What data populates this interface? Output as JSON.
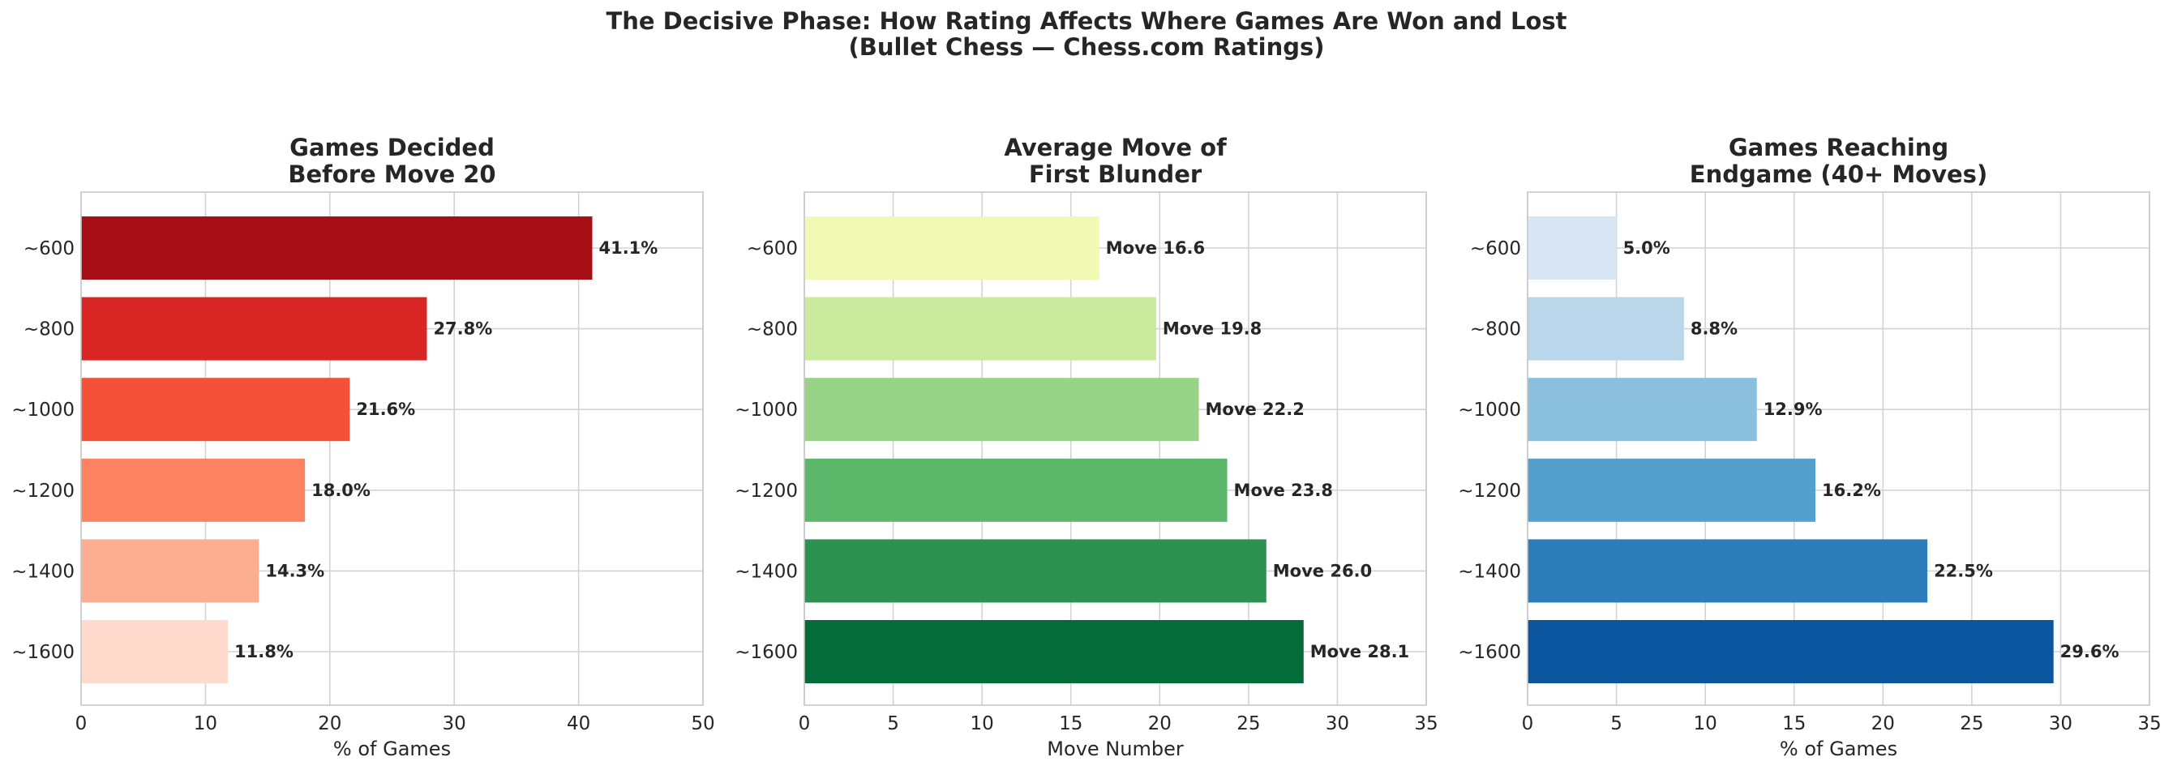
{
  "suptitle": {
    "line1": "The Decisive Phase: How Rating Affects Where Games Are Won and Lost",
    "line2": "(Bullet Chess — Chess.com Ratings)"
  },
  "chart_data": [
    {
      "type": "bar",
      "orientation": "horizontal",
      "title": [
        "Games Decided",
        "Before Move 20"
      ],
      "categories": [
        "~600",
        "~800",
        "~1000",
        "~1200",
        "~1400",
        "~1600"
      ],
      "values": [
        41.1,
        27.8,
        21.6,
        18.0,
        14.3,
        11.8
      ],
      "value_labels": [
        "41.1%",
        "27.8%",
        "21.6%",
        "18.0%",
        "14.3%",
        "11.8%"
      ],
      "colors": [
        "#a50f15",
        "#d92523",
        "#f4503a",
        "#fc8262",
        "#fcae91",
        "#fedbcc"
      ],
      "xlabel": "% of Games",
      "xlim": [
        0,
        50
      ],
      "xticks": [
        0,
        10,
        20,
        30,
        40,
        50
      ],
      "grid": true
    },
    {
      "type": "bar",
      "orientation": "horizontal",
      "title": [
        "Average Move of",
        "First Blunder"
      ],
      "categories": [
        "~600",
        "~800",
        "~1000",
        "~1200",
        "~1400",
        "~1600"
      ],
      "values": [
        16.6,
        19.8,
        22.2,
        23.8,
        26.0,
        28.1
      ],
      "value_labels": [
        "Move 16.6",
        "Move 19.8",
        "Move 22.2",
        "Move 23.8",
        "Move 26.0",
        "Move 28.1"
      ],
      "colors": [
        "#f1f9b5",
        "#caea9e",
        "#98d488",
        "#5bb86a",
        "#2d924f",
        "#036c39"
      ],
      "xlabel": "Move Number",
      "xlim": [
        0,
        35
      ],
      "xticks": [
        0,
        5,
        10,
        15,
        20,
        25,
        30,
        35
      ],
      "grid": true
    },
    {
      "type": "bar",
      "orientation": "horizontal",
      "title": [
        "Games Reaching",
        "Endgame (40+ Moves)"
      ],
      "categories": [
        "~600",
        "~800",
        "~1000",
        "~1200",
        "~1400",
        "~1600"
      ],
      "values": [
        5.0,
        8.8,
        12.9,
        16.2,
        22.5,
        29.6
      ],
      "value_labels": [
        "5.0%",
        "8.8%",
        "12.9%",
        "16.2%",
        "22.5%",
        "29.6%"
      ],
      "colors": [
        "#d9e7f5",
        "#bad6eb",
        "#8abfdd",
        "#559fcd",
        "#2d7dbb",
        "#0b559f"
      ],
      "xlabel": "% of Games",
      "xlim": [
        0,
        35
      ],
      "xticks": [
        0,
        5,
        10,
        15,
        20,
        25,
        30,
        35
      ],
      "grid": true
    }
  ]
}
